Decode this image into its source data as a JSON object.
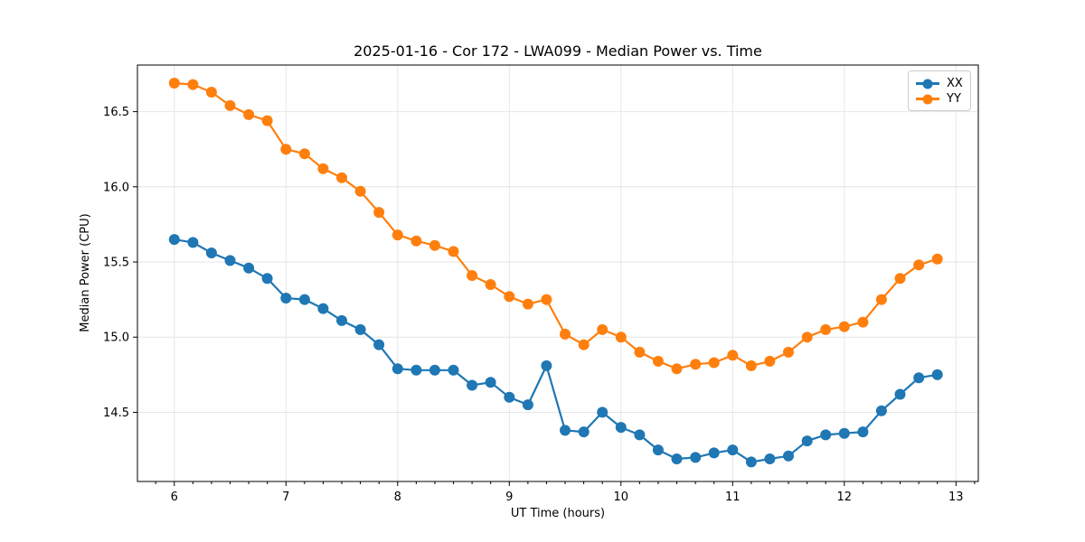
{
  "chart_data": {
    "type": "line",
    "title": "2025-01-16 - Cor 172 - LWA099 - Median Power vs. Time",
    "xlabel": "UT Time (hours)",
    "ylabel": "Median Power (CPU)",
    "xlim": [
      5.67,
      13.2
    ],
    "ylim": [
      14.04,
      16.81
    ],
    "grid": true,
    "legend_position": "upper right",
    "xticks": [
      {
        "value": 6,
        "label": "6"
      },
      {
        "value": 7,
        "label": "7"
      },
      {
        "value": 8,
        "label": "8"
      },
      {
        "value": 9,
        "label": "9"
      },
      {
        "value": 10,
        "label": "10"
      },
      {
        "value": 11,
        "label": "11"
      },
      {
        "value": 12,
        "label": "12"
      },
      {
        "value": 13,
        "label": "13"
      }
    ],
    "yticks": [
      {
        "value": 14.5,
        "label": "14.5"
      },
      {
        "value": 15.0,
        "label": "15.0"
      },
      {
        "value": 15.5,
        "label": "15.5"
      },
      {
        "value": 16.0,
        "label": "16.0"
      },
      {
        "value": 16.5,
        "label": "16.5"
      }
    ],
    "x_minor_interval": 0.166667,
    "x": [
      6.0,
      6.167,
      6.333,
      6.5,
      6.667,
      6.833,
      7.0,
      7.167,
      7.333,
      7.5,
      7.667,
      7.833,
      8.0,
      8.167,
      8.333,
      8.5,
      8.667,
      8.833,
      9.0,
      9.167,
      9.333,
      9.5,
      9.667,
      9.833,
      10.0,
      10.167,
      10.333,
      10.5,
      10.667,
      10.833,
      11.0,
      11.167,
      11.333,
      11.5,
      11.667,
      11.833,
      12.0,
      12.167,
      12.333,
      12.5,
      12.667,
      12.833
    ],
    "series": [
      {
        "name": "XX",
        "color": "#1f77b4",
        "values": [
          15.65,
          15.63,
          15.56,
          15.51,
          15.46,
          15.39,
          15.26,
          15.25,
          15.19,
          15.11,
          15.05,
          14.95,
          14.79,
          14.78,
          14.78,
          14.78,
          14.68,
          14.7,
          14.6,
          14.55,
          14.81,
          14.38,
          14.37,
          14.5,
          14.4,
          14.35,
          14.25,
          14.19,
          14.2,
          14.23,
          14.25,
          14.17,
          14.19,
          14.21,
          14.31,
          14.35,
          14.36,
          14.37,
          14.51,
          14.62,
          14.73,
          14.75
        ]
      },
      {
        "name": "YY",
        "color": "#ff7f0e",
        "values": [
          16.69,
          16.68,
          16.63,
          16.54,
          16.48,
          16.44,
          16.25,
          16.22,
          16.12,
          16.06,
          15.97,
          15.83,
          15.68,
          15.64,
          15.61,
          15.57,
          15.41,
          15.35,
          15.27,
          15.22,
          15.25,
          15.02,
          14.95,
          15.05,
          15.0,
          14.9,
          14.84,
          14.79,
          14.82,
          14.83,
          14.88,
          14.81,
          14.84,
          14.9,
          15.0,
          15.05,
          15.07,
          15.1,
          15.25,
          15.39,
          15.48,
          15.52
        ]
      }
    ]
  },
  "colors": {
    "grid": "#e6e6e6",
    "spine": "#000000",
    "tick": "#000000",
    "background": "#ffffff"
  }
}
